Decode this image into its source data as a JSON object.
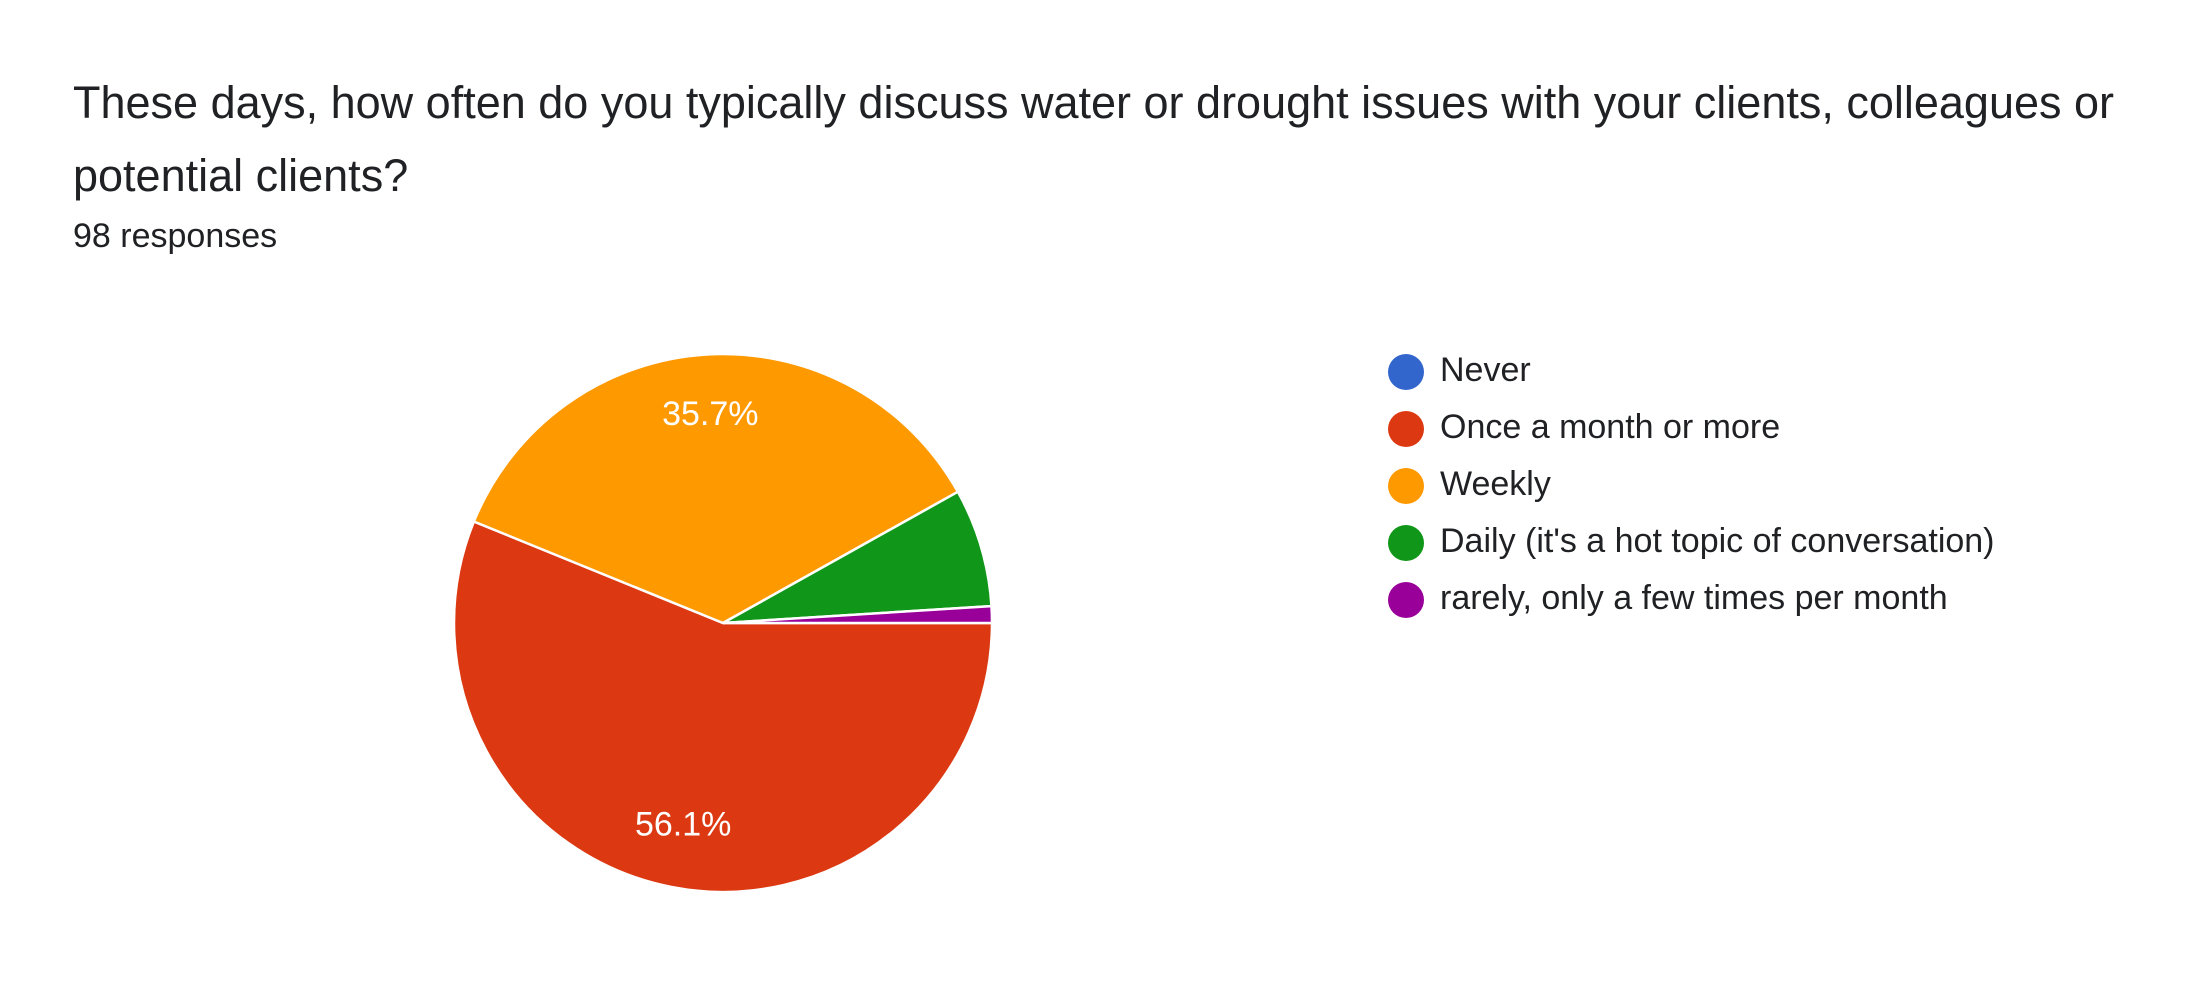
{
  "chart_data": {
    "type": "pie",
    "title": "These days, how often do you typically discuss water or drought issues with your clients, colleagues or potential clients?",
    "subtitle": "98 responses",
    "categories": [
      "Never",
      "Once a month or more",
      "Weekly",
      "Daily (it's a hot topic of conversation)",
      "rarely, only a few times per month"
    ],
    "values": [
      0,
      56.1,
      35.7,
      7.1,
      1.0
    ],
    "value_labels": [
      null,
      "56.1%",
      "35.7%",
      null,
      null
    ],
    "colors": [
      "#3366cc",
      "#dc3912",
      "#ff9900",
      "#109618",
      "#990099"
    ],
    "legend": "right"
  }
}
